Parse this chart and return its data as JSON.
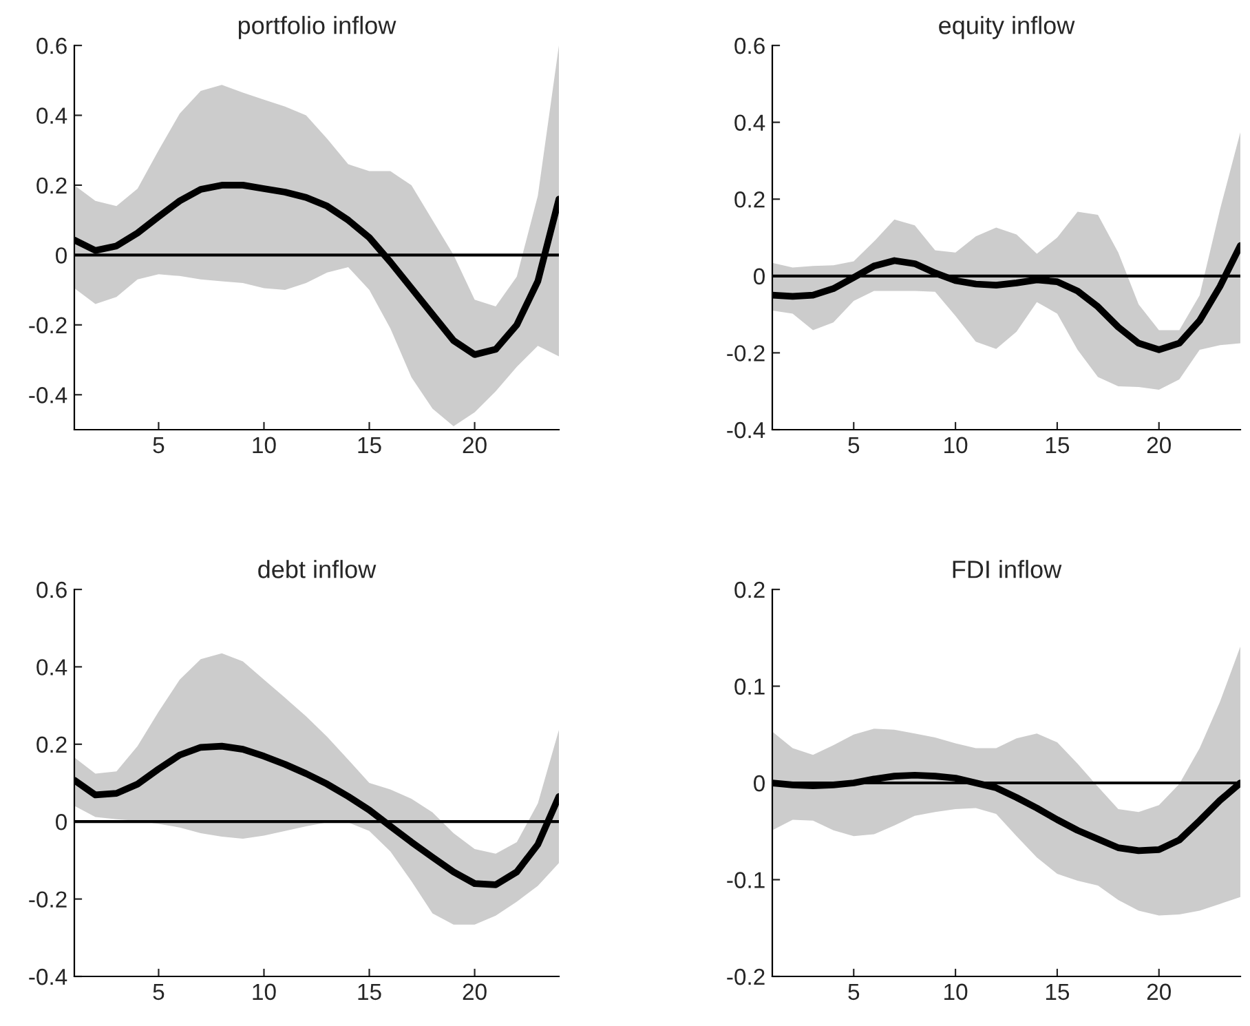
{
  "chart_data": [
    {
      "type": "line",
      "title": "portfolio inflow",
      "x": [
        1,
        2,
        3,
        4,
        5,
        6,
        7,
        8,
        9,
        10,
        11,
        12,
        13,
        14,
        15,
        16,
        17,
        18,
        19,
        20,
        21,
        22,
        23,
        24
      ],
      "xlim": [
        1,
        24
      ],
      "xticks": [
        5,
        10,
        15,
        20
      ],
      "ylim": [
        -0.5,
        0.6
      ],
      "yticks": [
        -0.4,
        -0.2,
        0,
        0.2,
        0.4,
        0.6
      ],
      "ref_lines": [
        {
          "axis": "y",
          "value": 0,
          "color": "#000000"
        }
      ],
      "series": [
        {
          "color": "#000000",
          "values": [
            0.043,
            0.013,
            0.026,
            0.063,
            0.11,
            0.155,
            0.188,
            0.2,
            0.2,
            0.19,
            0.18,
            0.165,
            0.14,
            0.1,
            0.05,
            -0.02,
            -0.095,
            -0.17,
            -0.245,
            -0.285,
            -0.27,
            -0.2,
            -0.075,
            0.16
          ],
          "upper": [
            0.2,
            0.155,
            0.14,
            0.19,
            0.3,
            0.405,
            0.47,
            0.487,
            0.465,
            0.445,
            0.425,
            0.4,
            0.333,
            0.26,
            0.24,
            0.24,
            0.2,
            0.1,
            0.0,
            -0.128,
            -0.147,
            -0.062,
            0.17,
            0.6
          ],
          "lower": [
            -0.095,
            -0.14,
            -0.12,
            -0.07,
            -0.055,
            -0.06,
            -0.07,
            -0.075,
            -0.08,
            -0.095,
            -0.1,
            -0.08,
            -0.05,
            -0.035,
            -0.1,
            -0.21,
            -0.35,
            -0.44,
            -0.49,
            -0.45,
            -0.39,
            -0.32,
            -0.26,
            -0.29
          ]
        }
      ]
    },
    {
      "type": "line",
      "title": "equity inflow",
      "x": [
        1,
        2,
        3,
        4,
        5,
        6,
        7,
        8,
        9,
        10,
        11,
        12,
        13,
        14,
        15,
        16,
        17,
        18,
        19,
        20,
        21,
        22,
        23,
        24
      ],
      "xlim": [
        1,
        24
      ],
      "xticks": [
        5,
        10,
        15,
        20
      ],
      "ylim": [
        -0.4,
        0.6
      ],
      "yticks": [
        -0.4,
        -0.2,
        0,
        0.2,
        0.4,
        0.6
      ],
      "ref_lines": [
        {
          "axis": "y",
          "value": 0,
          "color": "#000000"
        }
      ],
      "series": [
        {
          "color": "#000000",
          "values": [
            -0.05,
            -0.053,
            -0.05,
            -0.033,
            -0.004,
            0.026,
            0.04,
            0.032,
            0.008,
            -0.012,
            -0.021,
            -0.024,
            -0.018,
            -0.01,
            -0.015,
            -0.039,
            -0.08,
            -0.133,
            -0.175,
            -0.192,
            -0.175,
            -0.116,
            -0.027,
            0.079
          ],
          "upper": [
            0.034,
            0.022,
            0.026,
            0.028,
            0.038,
            0.09,
            0.147,
            0.132,
            0.067,
            0.061,
            0.103,
            0.126,
            0.108,
            0.058,
            0.1,
            0.167,
            0.159,
            0.061,
            -0.074,
            -0.141,
            -0.141,
            -0.05,
            0.173,
            0.374
          ],
          "lower": [
            -0.09,
            -0.098,
            -0.141,
            -0.121,
            -0.065,
            -0.039,
            -0.039,
            -0.039,
            -0.041,
            -0.104,
            -0.171,
            -0.19,
            -0.145,
            -0.068,
            -0.098,
            -0.192,
            -0.263,
            -0.287,
            -0.289,
            -0.296,
            -0.269,
            -0.192,
            -0.18,
            -0.175
          ]
        }
      ]
    },
    {
      "type": "line",
      "title": "debt inflow",
      "x": [
        1,
        2,
        3,
        4,
        5,
        6,
        7,
        8,
        9,
        10,
        11,
        12,
        13,
        14,
        15,
        16,
        17,
        18,
        19,
        20,
        21,
        22,
        23,
        24
      ],
      "xlim": [
        1,
        24
      ],
      "xticks": [
        5,
        10,
        15,
        20
      ],
      "ylim": [
        -0.4,
        0.6
      ],
      "yticks": [
        -0.4,
        -0.2,
        0,
        0.2,
        0.4,
        0.6
      ],
      "ref_lines": [
        {
          "axis": "y",
          "value": 0,
          "color": "#000000"
        }
      ],
      "series": [
        {
          "color": "#000000",
          "values": [
            0.107,
            0.069,
            0.073,
            0.097,
            0.136,
            0.172,
            0.192,
            0.195,
            0.187,
            0.169,
            0.148,
            0.124,
            0.097,
            0.065,
            0.03,
            -0.012,
            -0.053,
            -0.092,
            -0.13,
            -0.16,
            -0.163,
            -0.13,
            -0.059,
            0.065
          ],
          "upper": [
            0.166,
            0.124,
            0.13,
            0.195,
            0.284,
            0.367,
            0.42,
            0.435,
            0.414,
            0.367,
            0.32,
            0.272,
            0.219,
            0.16,
            0.1,
            0.083,
            0.059,
            0.024,
            -0.03,
            -0.071,
            -0.083,
            -0.053,
            0.047,
            0.237
          ],
          "lower": [
            0.041,
            0.012,
            0.006,
            0.002,
            -0.006,
            -0.015,
            -0.03,
            -0.039,
            -0.044,
            -0.036,
            -0.024,
            -0.012,
            -0.002,
            -0.002,
            -0.024,
            -0.077,
            -0.154,
            -0.237,
            -0.266,
            -0.266,
            -0.243,
            -0.207,
            -0.166,
            -0.107
          ]
        }
      ]
    },
    {
      "type": "line",
      "title": "FDI inflow",
      "x": [
        1,
        2,
        3,
        4,
        5,
        6,
        7,
        8,
        9,
        10,
        11,
        12,
        13,
        14,
        15,
        16,
        17,
        18,
        19,
        20,
        21,
        22,
        23,
        24
      ],
      "xlim": [
        1,
        24
      ],
      "xticks": [
        5,
        10,
        15,
        20
      ],
      "ylim": [
        -0.2,
        0.2
      ],
      "yticks": [
        -0.2,
        -0.1,
        0,
        0.1,
        0.2
      ],
      "ref_lines": [
        {
          "axis": "y",
          "value": 0,
          "color": "#000000"
        }
      ],
      "series": [
        {
          "color": "#000000",
          "values": [
            0.0,
            -0.002,
            -0.003,
            -0.002,
            0.0,
            0.004,
            0.007,
            0.008,
            0.007,
            0.005,
            0.0,
            -0.005,
            -0.015,
            -0.026,
            -0.038,
            -0.049,
            -0.058,
            -0.067,
            -0.07,
            -0.069,
            -0.059,
            -0.039,
            -0.018,
            0.0
          ],
          "upper": [
            0.053,
            0.036,
            0.029,
            0.039,
            0.05,
            0.056,
            0.055,
            0.051,
            0.047,
            0.041,
            0.036,
            0.036,
            0.046,
            0.051,
            0.042,
            0.02,
            -0.004,
            -0.027,
            -0.03,
            -0.023,
            -0.001,
            0.036,
            0.084,
            0.141
          ],
          "lower": [
            -0.049,
            -0.038,
            -0.039,
            -0.049,
            -0.055,
            -0.053,
            -0.044,
            -0.034,
            -0.03,
            -0.027,
            -0.026,
            -0.032,
            -0.055,
            -0.077,
            -0.094,
            -0.101,
            -0.106,
            -0.121,
            -0.132,
            -0.137,
            -0.136,
            -0.132,
            -0.125,
            -0.118
          ]
        }
      ]
    }
  ]
}
